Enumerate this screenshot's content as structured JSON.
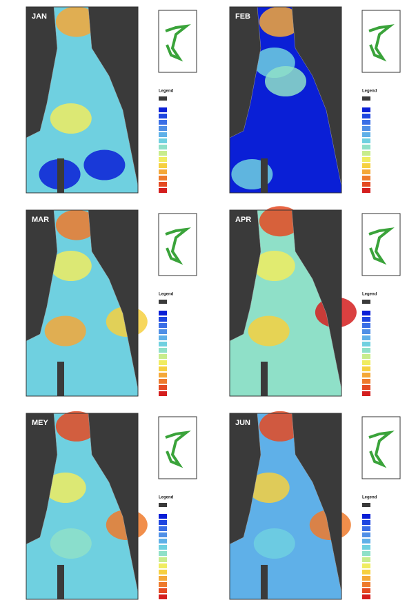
{
  "panels": [
    {
      "label": "JAN",
      "legend_title": "Legend"
    },
    {
      "label": "FEB",
      "legend_title": "Legend"
    },
    {
      "label": "MAR",
      "legend_title": "Legend"
    },
    {
      "label": "APR",
      "legend_title": "Legend"
    },
    {
      "label": "MEY",
      "legend_title": "Legend"
    },
    {
      "label": "JUN",
      "legend_title": "Legend"
    }
  ]
}
